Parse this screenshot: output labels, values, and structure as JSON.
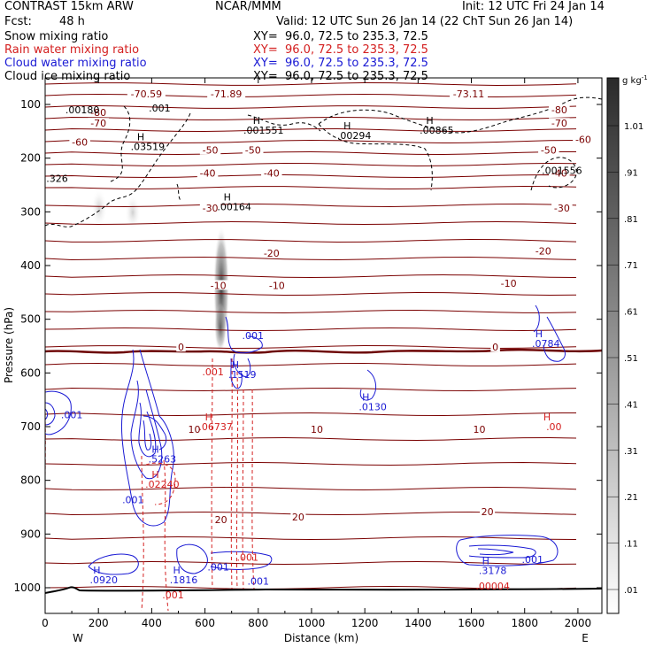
{
  "header": {
    "model": "CONTRAST 15km ARW",
    "center": "NCAR/MMM",
    "init": "Init: 12 UTC Fri 24 Jan 14",
    "fcst_label": "Fcst:",
    "fcst_value": "48 h",
    "valid": "Valid: 12 UTC Sun 26 Jan 14 (22 ChT Sun 26 Jan 14)"
  },
  "fields": [
    {
      "name": "Snow mixing ratio",
      "xy": "XY=  96.0, 72.5 to 235.3, 72.5",
      "color": "#000000"
    },
    {
      "name": "Rain water mixing ratio",
      "xy": "XY=  96.0, 72.5 to 235.3, 72.5",
      "color": "#d42020"
    },
    {
      "name": "Cloud water mixing ratio",
      "xy": "XY=  96.0, 72.5 to 235.3, 72.5",
      "color": "#1a1ad4"
    },
    {
      "name": "Cloud ice mixing ratio",
      "xy": "XY=  96.0, 72.5 to 235.3, 72.5",
      "color": "#000000"
    }
  ],
  "colorbar": {
    "unit": "g kg",
    "unit_sup": "-1",
    "labels": [
      ".01",
      ".11",
      ".21",
      ".31",
      ".41",
      ".51",
      ".61",
      ".71",
      ".81",
      ".91",
      "1.01"
    ]
  },
  "chart_data": {
    "type": "contour",
    "xlabel": "Distance (km)",
    "ylabel": "Pressure (hPa)",
    "xlim": [
      0,
      2090
    ],
    "ylim": [
      1050,
      50
    ],
    "x_ticks": [
      0,
      200,
      400,
      600,
      800,
      1000,
      1200,
      1400,
      1600,
      1800,
      2000
    ],
    "y_ticks": [
      100,
      200,
      300,
      400,
      500,
      600,
      700,
      800,
      900,
      1000
    ],
    "direction_labels": {
      "left": "W",
      "right": "E"
    },
    "temperature_contours": [
      {
        "label": "-70.59",
        "x": 380,
        "p": 80,
        "color": "#7a0000"
      },
      {
        "label": "-71.89",
        "x": 680,
        "p": 80,
        "color": "#7a0000"
      },
      {
        "label": "-73.11",
        "x": 1590,
        "p": 80,
        "color": "#7a0000"
      },
      {
        "label": "-80",
        "x": 200,
        "p": 115,
        "color": "#7a0000"
      },
      {
        "label": "-80",
        "x": 1930,
        "p": 110,
        "color": "#7a0000"
      },
      {
        "label": "-70",
        "x": 200,
        "p": 135,
        "color": "#7a0000"
      },
      {
        "label": "-70",
        "x": 1930,
        "p": 135,
        "color": "#7a0000"
      },
      {
        "label": "-60",
        "x": 130,
        "p": 170,
        "color": "#7a0000"
      },
      {
        "label": "-60",
        "x": 2020,
        "p": 165,
        "color": "#7a0000"
      },
      {
        "label": "-50",
        "x": 620,
        "p": 185,
        "color": "#7a0000"
      },
      {
        "label": "-50",
        "x": 780,
        "p": 185,
        "color": "#7a0000"
      },
      {
        "label": "-50",
        "x": 1890,
        "p": 185,
        "color": "#7a0000"
      },
      {
        "label": "-40",
        "x": 610,
        "p": 228,
        "color": "#7a0000"
      },
      {
        "label": "-40",
        "x": 850,
        "p": 228,
        "color": "#7a0000"
      },
      {
        "label": "-40",
        "x": 1930,
        "p": 228,
        "color": "#7a0000"
      },
      {
        "label": "-30",
        "x": 620,
        "p": 293,
        "color": "#7a0000"
      },
      {
        "label": "-30",
        "x": 1940,
        "p": 293,
        "color": "#7a0000"
      },
      {
        "label": "-20",
        "x": 850,
        "p": 377,
        "color": "#7a0000"
      },
      {
        "label": "-20",
        "x": 1870,
        "p": 373,
        "color": "#7a0000"
      },
      {
        "label": "-10",
        "x": 650,
        "p": 437,
        "color": "#7a0000"
      },
      {
        "label": "-10",
        "x": 870,
        "p": 437,
        "color": "#7a0000"
      },
      {
        "label": "-10",
        "x": 1740,
        "p": 433,
        "color": "#7a0000"
      },
      {
        "label": "0",
        "x": 510,
        "p": 552,
        "color": "#7a0000"
      },
      {
        "label": "0",
        "x": 1690,
        "p": 552,
        "color": "#7a0000"
      },
      {
        "label": "10",
        "x": 560,
        "p": 705,
        "color": "#7a0000"
      },
      {
        "label": "10",
        "x": 1020,
        "p": 705,
        "color": "#7a0000"
      },
      {
        "label": "10",
        "x": 1630,
        "p": 705,
        "color": "#7a0000"
      },
      {
        "label": "20",
        "x": 660,
        "p": 873,
        "color": "#7a0000"
      },
      {
        "label": "20",
        "x": 950,
        "p": 868,
        "color": "#7a0000"
      },
      {
        "label": "20",
        "x": 1660,
        "p": 858,
        "color": "#7a0000"
      }
    ],
    "maxima_labels": [
      {
        "label": ".00180",
        "x": 140,
        "p": 110,
        "color": "#000000",
        "H": false
      },
      {
        "label": ".001",
        "x": 430,
        "p": 107,
        "color": "#000000",
        "H": false
      },
      {
        "label": ".03519",
        "x": 385,
        "p": 178,
        "color": "#000000",
        "H": true
      },
      {
        "label": ".001551",
        "x": 820,
        "p": 148,
        "color": "#000000",
        "H": true
      },
      {
        "label": ".00294",
        "x": 1160,
        "p": 158,
        "color": "#000000",
        "H": true
      },
      {
        "label": ".00865",
        "x": 1470,
        "p": 148,
        "color": "#000000",
        "H": true
      },
      {
        "label": ".001556",
        "x": 1940,
        "p": 223,
        "color": "#000000",
        "H": false
      },
      {
        "label": ".326",
        "x": 45,
        "p": 238,
        "color": "#000000",
        "H": false
      },
      {
        "label": ".00164",
        "x": 710,
        "p": 290,
        "color": "#000000",
        "H": true
      },
      {
        "label": ".001",
        "x": 780,
        "p": 530,
        "color": "#1a1ad4",
        "H": false
      },
      {
        "label": ".0784",
        "x": 1880,
        "p": 545,
        "color": "#1a1ad4",
        "H": true
      },
      {
        "label": ".001",
        "x": 630,
        "p": 598,
        "color": "#d42020",
        "H": false
      },
      {
        "label": ".1519",
        "x": 740,
        "p": 603,
        "color": "#1a1ad4",
        "H": true
      },
      {
        "label": ".0130",
        "x": 1230,
        "p": 663,
        "color": "#1a1ad4",
        "H": true
      },
      {
        "label": ".001",
        "x": 100,
        "p": 678,
        "color": "#1a1ad4",
        "H": false
      },
      {
        "label": ".06737",
        "x": 640,
        "p": 700,
        "color": "#d42020",
        "H": true
      },
      {
        "label": ".00",
        "x": 1910,
        "p": 700,
        "color": "#d42020",
        "H": true
      },
      {
        "label": ".5263",
        "x": 440,
        "p": 760,
        "color": "#1a1ad4",
        "H": true
      },
      {
        "label": ".02240",
        "x": 440,
        "p": 807,
        "color": "#d42020",
        "H": true
      },
      {
        "label": ".001",
        "x": 330,
        "p": 836,
        "color": "#1a1ad4",
        "H": false
      },
      {
        "label": ".001",
        "x": 760,
        "p": 943,
        "color": "#d42020",
        "H": false
      },
      {
        "label": ".001",
        "x": 1830,
        "p": 947,
        "color": "#1a1ad4",
        "H": false
      },
      {
        "label": ".001",
        "x": 650,
        "p": 961,
        "color": "#1a1ad4",
        "H": false
      },
      {
        "label": ".3178",
        "x": 1680,
        "p": 968,
        "color": "#1a1ad4",
        "H": true
      },
      {
        "label": ".0920",
        "x": 220,
        "p": 985,
        "color": "#1a1ad4",
        "H": true
      },
      {
        "label": ".1816",
        "x": 520,
        "p": 985,
        "color": "#1a1ad4",
        "H": true
      },
      {
        "label": ".001",
        "x": 800,
        "p": 988,
        "color": "#1a1ad4",
        "H": false
      },
      {
        "label": ".00004",
        "x": 1680,
        "p": 997,
        "color": "#d42020",
        "H": false
      },
      {
        "label": ".001",
        "x": 480,
        "p": 1013,
        "color": "#d42020",
        "H": false
      }
    ],
    "colorbar_range": [
      0.01,
      1.01
    ]
  }
}
